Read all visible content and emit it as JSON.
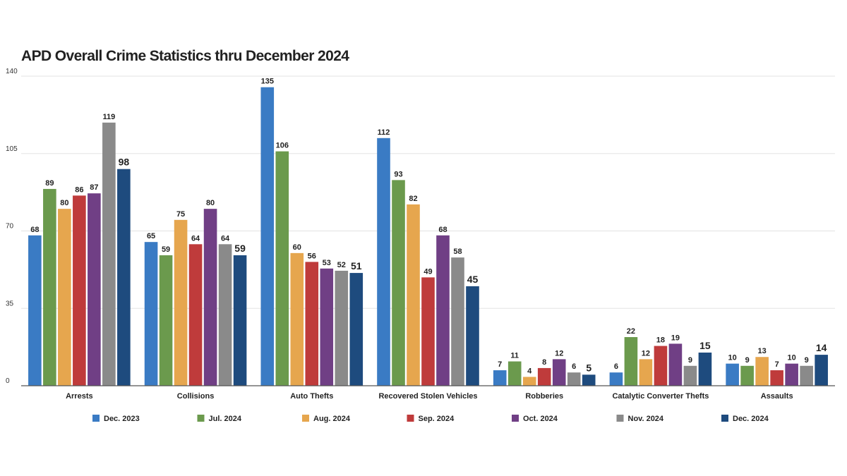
{
  "chart_data": {
    "type": "bar",
    "title": "APD Overall Crime Statistics thru December 2024",
    "xlabel": "",
    "ylabel": "",
    "ylim": [
      0,
      140
    ],
    "yticks": [
      0,
      35,
      70,
      105,
      140
    ],
    "grid": true,
    "legend_position": "bottom",
    "categories": [
      "Arrests",
      "Collisions",
      "Auto Thefts",
      "Recovered Stolen Vehicles",
      "Robberies",
      "Catalytic Converter Thefts",
      "Assaults"
    ],
    "series": [
      {
        "name": "Dec. 2023",
        "color": "#3a7bc4",
        "values": [
          68,
          65,
          135,
          112,
          7,
          6,
          10
        ]
      },
      {
        "name": "Jul. 2024",
        "color": "#6b9a4d",
        "values": [
          89,
          59,
          106,
          93,
          11,
          22,
          9
        ]
      },
      {
        "name": "Aug. 2024",
        "color": "#e6a64e",
        "values": [
          80,
          75,
          60,
          82,
          4,
          12,
          13
        ]
      },
      {
        "name": "Sep. 2024",
        "color": "#bf3b3b",
        "values": [
          86,
          64,
          56,
          49,
          8,
          18,
          7
        ]
      },
      {
        "name": "Oct. 2024",
        "color": "#703f85",
        "values": [
          87,
          80,
          53,
          68,
          12,
          19,
          10
        ]
      },
      {
        "name": "Nov. 2024",
        "color": "#8a8a8a",
        "values": [
          119,
          64,
          52,
          58,
          6,
          9,
          9
        ]
      },
      {
        "name": "Dec. 2024",
        "color": "#1e4b7e",
        "values": [
          98,
          59,
          51,
          45,
          5,
          15,
          14
        ]
      }
    ]
  }
}
